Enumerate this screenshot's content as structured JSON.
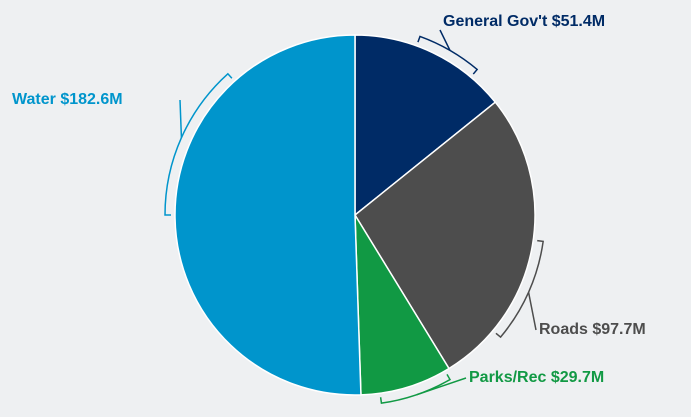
{
  "chart_data": {
    "type": "pie",
    "categories": [
      "General Gov't",
      "Roads",
      "Parks/Rec",
      "Water"
    ],
    "values": [
      51.4,
      97.7,
      29.7,
      182.6
    ],
    "value_labels": [
      "$51.4M",
      "$97.7M",
      "$29.7M",
      "$182.6M"
    ],
    "colors": [
      "#002b66",
      "#4d4d4d",
      "#119944",
      "#0095cc"
    ]
  }
}
